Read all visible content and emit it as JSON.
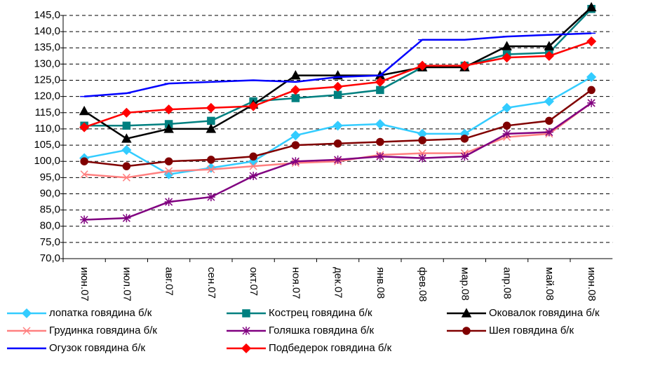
{
  "chart_data": {
    "type": "line",
    "categories": [
      "июн.07",
      "июл.07",
      "авг.07",
      "сен.07",
      "окт.07",
      "ноя.07",
      "дек.07",
      "янв.08",
      "фев.08",
      "мар.08",
      "апр.08",
      "май.08",
      "июн.08"
    ],
    "series": [
      {
        "name": "лопатка говядина б/к",
        "color": "#33ccff",
        "marker": "diamond",
        "values": [
          101,
          103.5,
          96,
          98,
          100,
          108,
          111,
          111.5,
          108.5,
          108.5,
          116.5,
          118.5,
          126
        ]
      },
      {
        "name": "Кострец говядина б/к",
        "color": "#008080",
        "marker": "square",
        "values": [
          111,
          111,
          111.5,
          112.5,
          118.5,
          119.5,
          120.5,
          122,
          129,
          129.5,
          133,
          133.5,
          147
        ]
      },
      {
        "name": "Оковалок говядина б/к",
        "color": "#000000",
        "marker": "triangle",
        "values": [
          115.5,
          107,
          110,
          110,
          117.5,
          126.5,
          126.5,
          126.5,
          129,
          129,
          135.5,
          135.5,
          147.5
        ]
      },
      {
        "name": "Грудинка говядина б/к",
        "color": "#ff8080",
        "marker": "x",
        "values": [
          96,
          95,
          97,
          97.5,
          98.5,
          99.5,
          100,
          102,
          102.5,
          102.5,
          107.5,
          108.5,
          118
        ]
      },
      {
        "name": "Голяшка говядина б/к",
        "color": "#800080",
        "marker": "asterisk",
        "values": [
          82,
          82.5,
          87.5,
          89,
          95.5,
          100,
          100.5,
          101.5,
          101,
          101.5,
          108.5,
          109,
          118
        ]
      },
      {
        "name": "Шея говядина б/к",
        "color": "#800000",
        "marker": "circle",
        "values": [
          100,
          98.5,
          100,
          100.5,
          101.5,
          105,
          105.5,
          106,
          106.5,
          107,
          111,
          112.5,
          122
        ]
      },
      {
        "name": "Огузок говядина б/к",
        "color": "#0000ff",
        "marker": "plus",
        "values": [
          120,
          121,
          124,
          124.5,
          125,
          124.5,
          126,
          126.5,
          137.5,
          137.5,
          138.5,
          139,
          139.5
        ]
      },
      {
        "name": "Подбедерок говядина б/к",
        "color": "#ff0000",
        "marker": "diamond",
        "values": [
          110.5,
          115,
          116,
          116.5,
          117,
          122,
          123,
          124.5,
          129.5,
          129.5,
          132,
          132.5,
          137
        ]
      }
    ],
    "ylim": [
      70,
      145
    ],
    "yticks": [
      {
        "value": 70,
        "label": "70,0"
      },
      {
        "value": 75,
        "label": "75,0"
      },
      {
        "value": 80,
        "label": "80,0"
      },
      {
        "value": 85,
        "label": "85,0"
      },
      {
        "value": 90,
        "label": "90,0"
      },
      {
        "value": 95,
        "label": "95,0"
      },
      {
        "value": 100,
        "label": "100,0"
      },
      {
        "value": 105,
        "label": "105,0"
      },
      {
        "value": 110,
        "label": "110,0"
      },
      {
        "value": 115,
        "label": "115,0"
      },
      {
        "value": 120,
        "label": "120,0"
      },
      {
        "value": 125,
        "label": "125,0"
      },
      {
        "value": 130,
        "label": "130,0"
      },
      {
        "value": 135,
        "label": "135,0"
      },
      {
        "value": 140,
        "label": "140,0"
      },
      {
        "value": 145,
        "label": "145,0"
      }
    ],
    "grid": true
  }
}
